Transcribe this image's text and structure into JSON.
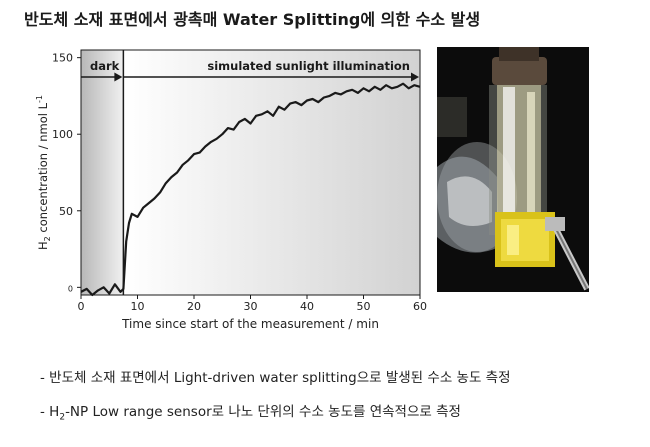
{
  "page": {
    "title": "반도체 소재 표면에서 광촉매 Water Splitting에 의한 수소 발생"
  },
  "notes": {
    "line1": "- 반도체 소재 표면에서 Light-driven water splitting으로 발생된 수소 농도 측정",
    "line2_prefix": "- H",
    "line2_sub": "2",
    "line2_suffix": "-NP Low range sensor로 나노 단위의 수소 농도를 연속적으로 측정"
  },
  "chart_data": {
    "type": "line",
    "xlabel": "Time since start of the measurement / min",
    "ylabel_main": "H",
    "ylabel_sub": "2",
    "ylabel_rest": " concentration / nmol L",
    "ylabel_sup": "-1",
    "xlim": [
      0,
      60
    ],
    "ylim": [
      -5,
      155
    ],
    "xticks": [
      0,
      10,
      20,
      30,
      40,
      50,
      60
    ],
    "yticks": [
      0,
      50,
      100,
      150
    ],
    "grid": false,
    "annotations": [
      {
        "text": "dark",
        "from": 0,
        "to": 7.5
      },
      {
        "text": "simulated sunlight illumination",
        "from": 7.5,
        "to": 60
      }
    ],
    "illumination_start": 7.5,
    "series": [
      {
        "x": [
          0,
          1,
          2,
          3,
          4,
          5,
          6,
          7,
          7.5,
          8,
          8.5,
          9,
          10,
          11,
          12,
          13,
          14,
          15,
          16,
          17,
          18,
          19,
          20,
          21,
          22,
          23,
          24,
          25,
          26,
          27,
          28,
          29,
          30,
          31,
          32,
          33,
          34,
          35,
          36,
          37,
          38,
          39,
          40,
          41,
          42,
          43,
          44,
          45,
          46,
          47,
          48,
          49,
          50,
          51,
          52,
          53,
          54,
          55,
          56,
          57,
          58,
          59,
          60
        ],
        "values": [
          -3,
          -1,
          -5,
          -2,
          0,
          -4,
          2,
          -3,
          -1,
          30,
          42,
          48,
          46,
          52,
          55,
          58,
          62,
          68,
          72,
          75,
          80,
          83,
          87,
          88,
          92,
          95,
          97,
          100,
          104,
          103,
          108,
          110,
          107,
          112,
          113,
          115,
          112,
          118,
          116,
          120,
          121,
          119,
          122,
          123,
          121,
          124,
          125,
          127,
          126,
          128,
          129,
          127,
          130,
          128,
          131,
          129,
          132,
          130,
          131,
          133,
          130,
          132,
          131
        ],
        "color": "#1a1a1a"
      }
    ]
  },
  "colors": {
    "plot_bg_light": "#f3f3f3",
    "plot_bg_dark": "#d0d0d0",
    "line": "#1a1a1a"
  }
}
